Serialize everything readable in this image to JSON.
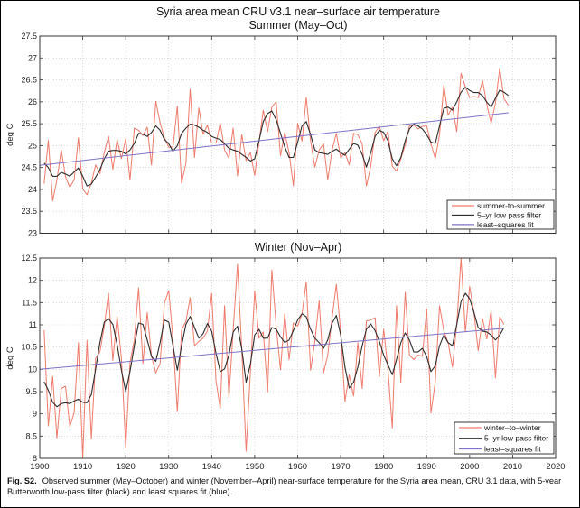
{
  "figure": {
    "caption_label": "Fig. S2.",
    "caption_text": "Observed summer (May–October) and winter (November–April) near-surface temperature for the Syria area mean, CRU 3.1 data, with 5-year Butterworth low-pass filter (black) and least squares fit (blue)."
  },
  "colors": {
    "raw": "#f07a6a",
    "filter": "#2b2b2b",
    "fit": "#7b72c9",
    "grid": "#c8c8c8",
    "axis": "#333333"
  },
  "chart_data": [
    {
      "type": "line",
      "title": "Syria area mean CRU v3.1 near–surface air temperature",
      "subtitle": "Summer (May–Oct)",
      "xlabel": "",
      "ylabel": "deg C",
      "xlim": [
        1900,
        2020
      ],
      "ylim": [
        23,
        27.5
      ],
      "grid": true,
      "xticks": [
        1900,
        1910,
        1920,
        1930,
        1940,
        1950,
        1960,
        1970,
        1980,
        1990,
        2000,
        2010,
        2020
      ],
      "xtick_labels_visible": false,
      "yticks": [
        "23",
        "23.5",
        "24",
        "24.5",
        "25",
        "25.5",
        "26",
        "26.5",
        "27",
        "27.5"
      ],
      "legend_position": "bottom-right",
      "x_start": 1901,
      "series": [
        {
          "name": "summer-to-summer",
          "role": "raw",
          "values": [
            24.13,
            25.12,
            23.74,
            24.22,
            24.9,
            24.29,
            24.05,
            24.22,
            25.18,
            24.01,
            23.88,
            24.15,
            24.56,
            24.36,
            24.84,
            25.21,
            24.46,
            25.14,
            24.7,
            25.16,
            24.21,
            25.4,
            25.35,
            25.23,
            25.42,
            24.56,
            26.01,
            25.52,
            25.18,
            24.96,
            24.97,
            25.9,
            24.14,
            24.6,
            26.29,
            24.73,
            25.86,
            25.26,
            25.47,
            25.06,
            25.06,
            25.51,
            24.9,
            24.71,
            25.4,
            24.31,
            25.25,
            24.66,
            24.84,
            24.32,
            25.08,
            25.81,
            25.32,
            25.88,
            26.0,
            24.77,
            25.3,
            24.84,
            24.08,
            25.51,
            25.1,
            26.1,
            25.11,
            24.51,
            24.9,
            25.04,
            24.22,
            24.9,
            25.28,
            24.72,
            24.84,
            24.56,
            25.28,
            25.25,
            25.04,
            24.08,
            24.53,
            25.3,
            25.44,
            25.11,
            25.33,
            24.53,
            24.42,
            24.7,
            25.01,
            25.45,
            25.47,
            25.38,
            25.44,
            25.45,
            25.04,
            24.7,
            25.25,
            26.38,
            25.69,
            25.88,
            25.32,
            26.65,
            26.34,
            26.1,
            26.12,
            26.1,
            26.49,
            25.93,
            25.51,
            25.97,
            26.77,
            26.07,
            25.92
          ]
        },
        {
          "name": "5–yr low pass filter",
          "role": "filter",
          "values": [
            24.6,
            24.5,
            24.3,
            24.3,
            24.39,
            24.35,
            24.3,
            24.4,
            24.49,
            24.3,
            24.08,
            24.12,
            24.28,
            24.45,
            24.7,
            24.87,
            24.89,
            24.89,
            24.87,
            24.81,
            24.9,
            25.05,
            25.28,
            25.26,
            25.21,
            25.3,
            25.45,
            25.35,
            25.14,
            25.04,
            24.87,
            25.0,
            25.28,
            25.4,
            25.49,
            25.47,
            25.42,
            25.35,
            25.3,
            25.21,
            25.17,
            25.14,
            25.04,
            24.94,
            24.9,
            24.87,
            24.8,
            24.73,
            24.65,
            24.7,
            25.11,
            25.55,
            25.73,
            25.79,
            25.59,
            25.28,
            24.97,
            24.73,
            24.73,
            25.08,
            25.45,
            25.55,
            25.25,
            24.9,
            24.84,
            24.82,
            24.8,
            24.87,
            24.92,
            24.84,
            24.78,
            24.92,
            25.05,
            25.01,
            24.8,
            24.51,
            24.84,
            25.21,
            25.35,
            25.3,
            25.11,
            24.7,
            24.54,
            24.73,
            25.11,
            25.38,
            25.49,
            25.45,
            25.38,
            25.25,
            25.08,
            25.05,
            25.45,
            25.85,
            25.88,
            25.81,
            26.0,
            26.22,
            26.33,
            26.26,
            26.21,
            26.21,
            26.14,
            25.99,
            25.88,
            26.08,
            26.27,
            26.22,
            26.14
          ]
        },
        {
          "name": "least–squares fit",
          "role": "fit",
          "x": [
            1900,
            2009
          ],
          "values": [
            24.55,
            25.75
          ]
        }
      ]
    },
    {
      "type": "line",
      "title": "Winter (Nov–Apr)",
      "xlabel": "",
      "ylabel": "deg C",
      "xlim": [
        1900,
        2020
      ],
      "ylim": [
        8,
        12.5
      ],
      "grid": true,
      "xticks": [
        "1900",
        "1910",
        "1920",
        "1930",
        "1940",
        "1950",
        "1960",
        "1970",
        "1980",
        "1990",
        "2000",
        "2010",
        "2020"
      ],
      "yticks": [
        "8",
        "8.5",
        "9",
        "9.5",
        "10",
        "10.5",
        "11",
        "11.5",
        "12",
        "12.5"
      ],
      "legend_position": "bottom-right",
      "x_start": 1901,
      "series": [
        {
          "name": "winter–to–winter",
          "role": "raw",
          "values": [
            10.88,
            8.73,
            9.84,
            8.46,
            9.57,
            9.62,
            8.71,
            9.03,
            10.6,
            8.0,
            10.65,
            8.44,
            10.25,
            10.39,
            10.97,
            11.71,
            10.2,
            11.19,
            10.25,
            8.23,
            10.15,
            10.66,
            11.83,
            10.13,
            11.28,
            10.29,
            9.92,
            10.13,
            11.49,
            11.77,
            10.66,
            9.05,
            10.88,
            11.08,
            11.61,
            10.53,
            10.63,
            10.7,
            10.86,
            11.71,
            9.74,
            9.12,
            11.43,
            9.36,
            10.88,
            12.36,
            10.46,
            8.16,
            9.95,
            11.76,
            10.7,
            10.84,
            9.49,
            12.23,
            10.97,
            9.99,
            11.25,
            10.22,
            11.04,
            10.97,
            11.25,
            11.97,
            9.98,
            10.63,
            11.54,
            9.92,
            10.32,
            11.16,
            11.91,
            10.84,
            9.28,
            9.88,
            9.4,
            10.6,
            9.57,
            11.09,
            11.11,
            11.16,
            9.84,
            10.9,
            10.01,
            8.68,
            11.43,
            9.71,
            11.73,
            10.32,
            10.22,
            10.32,
            10.29,
            11.36,
            9.02,
            9.71,
            11.43,
            10.86,
            10.6,
            10.05,
            11.01,
            12.5,
            10.84,
            11.86,
            11.28,
            10.42,
            11.14,
            10.68,
            11.32,
            9.81,
            11.18,
            11.01
          ]
        },
        {
          "name": "5–yr low pass filter",
          "role": "filter",
          "values": [
            9.72,
            9.53,
            9.26,
            9.16,
            9.23,
            9.25,
            9.23,
            9.29,
            9.33,
            9.26,
            9.25,
            9.43,
            10.01,
            10.6,
            11.06,
            11.14,
            11.01,
            10.56,
            9.98,
            9.5,
            9.95,
            10.53,
            11.04,
            11.01,
            10.66,
            10.29,
            10.18,
            10.6,
            11.11,
            11.06,
            10.53,
            9.98,
            10.53,
            11.01,
            11.19,
            10.94,
            10.7,
            10.8,
            11.03,
            10.86,
            10.36,
            9.95,
            10.01,
            10.32,
            10.84,
            10.97,
            10.46,
            9.71,
            10.12,
            10.77,
            10.9,
            10.7,
            10.7,
            10.94,
            10.9,
            10.73,
            10.6,
            10.66,
            10.87,
            11.11,
            11.25,
            11.18,
            10.9,
            10.7,
            10.6,
            10.47,
            10.66,
            11.04,
            11.21,
            10.77,
            10.05,
            9.58,
            9.71,
            10.05,
            10.53,
            10.9,
            11.02,
            10.87,
            10.63,
            10.32,
            10.1,
            9.88,
            10.22,
            10.6,
            10.82,
            10.66,
            10.39,
            10.39,
            10.47,
            10.29,
            9.95,
            10.08,
            10.53,
            10.77,
            10.6,
            10.53,
            11.01,
            11.52,
            11.71,
            11.59,
            11.28,
            10.94,
            10.86,
            10.84,
            10.77,
            10.66,
            10.77,
            10.94
          ]
        },
        {
          "name": "least–squares fit",
          "role": "fit",
          "x": [
            1900,
            2008
          ],
          "values": [
            10.0,
            10.92
          ]
        }
      ]
    }
  ]
}
